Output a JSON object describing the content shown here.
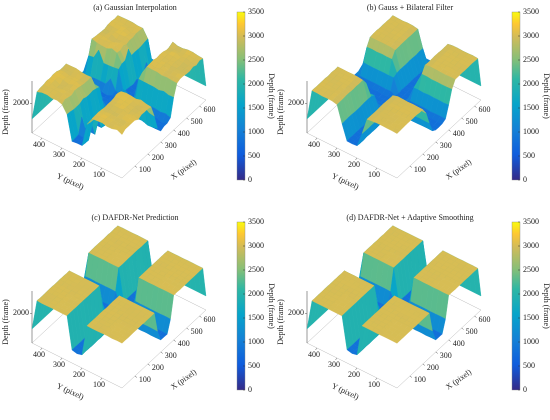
{
  "chart_data": [
    {
      "type": "surface",
      "title": "(a) Gaussian Interpolation",
      "xlabel": "X (pixel)",
      "ylabel": "Y (pixel)",
      "zlabel": "Depth (frame)",
      "colorbar_label": "Depth (frame)",
      "xlim": [
        0,
        650
      ],
      "ylim": [
        0,
        450
      ],
      "zlim": [
        0,
        3500
      ],
      "xticks": [
        100,
        200,
        300,
        400,
        500,
        600
      ],
      "yticks": [
        100,
        200,
        300,
        400
      ],
      "zticks": [
        2000
      ],
      "clim": [
        0,
        3500
      ],
      "cticks": [
        0,
        500,
        1000,
        1500,
        2000,
        2500,
        3000,
        3500
      ]
    },
    {
      "type": "surface",
      "title": "(b) Gauss + Bilateral Filter",
      "xlabel": "X (pixel)",
      "ylabel": "Y (pixel)",
      "zlabel": "Depth (frame)",
      "colorbar_label": "Depth (frame)",
      "xlim": [
        0,
        650
      ],
      "ylim": [
        0,
        450
      ],
      "zlim": [
        0,
        3500
      ],
      "xticks": [
        100,
        200,
        300,
        400,
        500,
        600
      ],
      "yticks": [
        100,
        200,
        300,
        400
      ],
      "zticks": [
        2000
      ],
      "clim": [
        0,
        3500
      ],
      "cticks": [
        0,
        500,
        1000,
        1500,
        2000,
        2500,
        3000,
        3500
      ]
    },
    {
      "type": "surface",
      "title": "(c) DAFDR-Net Prediction",
      "xlabel": "X (pixel)",
      "ylabel": "Y (pixel)",
      "zlabel": "Depth (frame)",
      "colorbar_label": "Depth (frame)",
      "xlim": [
        0,
        650
      ],
      "ylim": [
        0,
        450
      ],
      "zlim": [
        0,
        3500
      ],
      "xticks": [
        100,
        200,
        300,
        400,
        500,
        600
      ],
      "yticks": [
        100,
        200,
        300,
        400
      ],
      "zticks": [
        2000
      ],
      "clim": [
        0,
        3500
      ],
      "cticks": [
        0,
        500,
        1000,
        1500,
        2000,
        2500,
        3000,
        3500
      ]
    },
    {
      "type": "surface",
      "title": "(d) DAFDR-Net + Adaptive Smoothing",
      "xlabel": "X (pixel)",
      "ylabel": "Y (pixel)",
      "zlabel": "Depth (frame)",
      "colorbar_label": "Depth (frame)",
      "xlim": [
        0,
        650
      ],
      "ylim": [
        0,
        450
      ],
      "zlim": [
        0,
        3500
      ],
      "xticks": [
        100,
        200,
        300,
        400,
        500,
        600
      ],
      "yticks": [
        100,
        200,
        300,
        400
      ],
      "zticks": [
        2000
      ],
      "clim": [
        0,
        3500
      ],
      "cticks": [
        0,
        500,
        1000,
        1500,
        2000,
        2500,
        3000,
        3500
      ]
    }
  ]
}
